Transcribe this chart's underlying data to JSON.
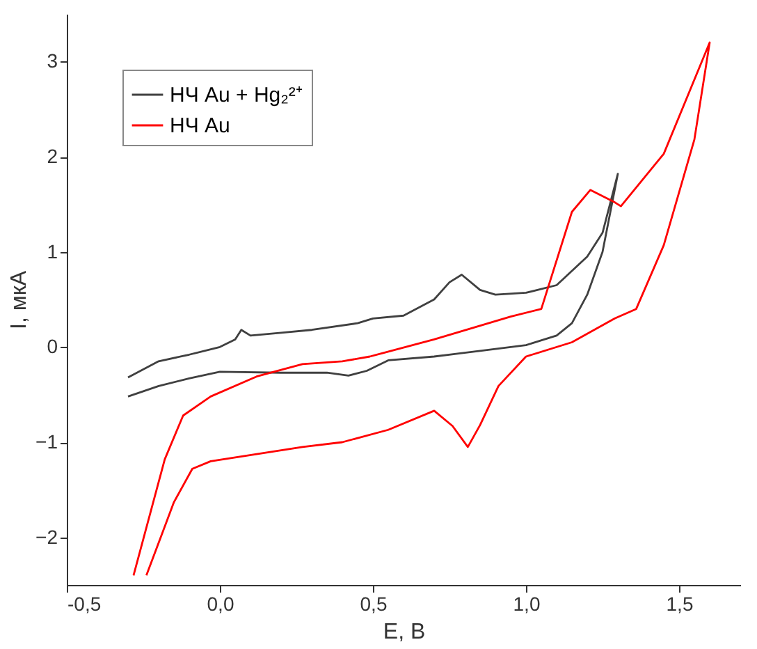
{
  "chart_data": {
    "type": "line",
    "xlabel": "E, В",
    "ylabel": "I, мкА",
    "xlim": [
      -0.5,
      1.7
    ],
    "ylim": [
      -2.5,
      3.5
    ],
    "xticks": [
      {
        "value": -0.5,
        "label": "-0,5"
      },
      {
        "value": 0.0,
        "label": "0,0"
      },
      {
        "value": 0.5,
        "label": "0,5"
      },
      {
        "value": 1.0,
        "label": "1,0"
      },
      {
        "value": 1.5,
        "label": "1,5"
      }
    ],
    "yticks": [
      -2,
      -1,
      0,
      1,
      2,
      3
    ],
    "grid": false,
    "legend": "top left",
    "marker": "none",
    "line_style": "solid",
    "series": [
      {
        "name": "НЧ Au + Hg₂²⁺",
        "color": "#404040",
        "x": [
          -0.3,
          -0.2,
          -0.1,
          0.0,
          0.05,
          0.07,
          0.1,
          0.2,
          0.3,
          0.45,
          0.5,
          0.6,
          0.7,
          0.75,
          0.79,
          0.85,
          0.9,
          1.0,
          1.1,
          1.2,
          1.25,
          1.3,
          1.25,
          1.2,
          1.15,
          1.1,
          1.0,
          0.85,
          0.7,
          0.55,
          0.48,
          0.42,
          0.35,
          0.2,
          0.0,
          -0.1,
          -0.2,
          -0.3
        ],
        "values": [
          -0.32,
          -0.15,
          -0.08,
          0.0,
          0.08,
          0.18,
          0.12,
          0.15,
          0.18,
          0.25,
          0.3,
          0.33,
          0.5,
          0.68,
          0.76,
          0.6,
          0.55,
          0.57,
          0.65,
          0.95,
          1.2,
          1.82,
          1.0,
          0.55,
          0.25,
          0.12,
          0.02,
          -0.04,
          -0.1,
          -0.14,
          -0.25,
          -0.3,
          -0.27,
          -0.27,
          -0.26,
          -0.33,
          -0.41,
          -0.52
        ]
      },
      {
        "name": "НЧ Au",
        "color": "#ff0000",
        "x": [
          -0.282,
          -0.18,
          -0.12,
          -0.03,
          0.12,
          0.27,
          0.4,
          0.49,
          0.7,
          0.95,
          1.05,
          1.15,
          1.21,
          1.29,
          1.31,
          1.45,
          1.6,
          1.55,
          1.45,
          1.36,
          1.29,
          1.15,
          1.0,
          0.91,
          0.85,
          0.81,
          0.76,
          0.7,
          0.55,
          0.4,
          0.27,
          -0.03,
          -0.09,
          -0.15,
          -0.24
        ],
        "values": [
          -2.4,
          -1.18,
          -0.72,
          -0.52,
          -0.31,
          -0.18,
          -0.15,
          -0.1,
          0.08,
          0.32,
          0.4,
          1.42,
          1.65,
          1.52,
          1.48,
          2.03,
          3.2,
          2.18,
          1.07,
          0.4,
          0.3,
          0.05,
          -0.1,
          -0.41,
          -0.82,
          -1.05,
          -0.83,
          -0.67,
          -0.87,
          -1.0,
          -1.05,
          -1.2,
          -1.28,
          -1.63,
          -2.4
        ]
      }
    ]
  }
}
